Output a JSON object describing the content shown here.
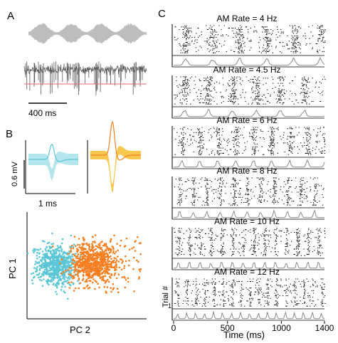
{
  "panels": {
    "A": "A",
    "B": "B",
    "C": "C"
  },
  "panel_a": {
    "scale_bar_label": "400 ms",
    "stimulus_color": "#bdbdbd",
    "trace_color": "#5a5a5a",
    "threshold_color": "#e8647a"
  },
  "panel_b": {
    "voltage_scale_label": "0.6 mV",
    "time_scale_label": "1 ms",
    "cluster1_color": "#5bc6d6",
    "cluster2_color": "#f57f20",
    "waveform2_band_color": "#f7c23b",
    "pc_y_label": "PC 1",
    "pc_x_label": "PC 2"
  },
  "panel_c": {
    "raster_titles": [
      "AM Rate = 4 Hz",
      "AM Rate = 4.5 Hz",
      "AM Rate = 6 Hz",
      "AM Rate = 8 Hz",
      "AM Rate = 10 Hz",
      "AM Rate = 12 Hz"
    ],
    "am_rates_hz": [
      4,
      4.5,
      6,
      8,
      10,
      12
    ],
    "y_label": "Trial #",
    "y_tick": "1",
    "x_label": "Time (ms)",
    "x_ticks": [
      "0",
      "500",
      "1000",
      "1400"
    ],
    "x_tick_values": [
      0,
      500,
      1000,
      1400
    ],
    "x_range": [
      0,
      1400
    ]
  }
}
